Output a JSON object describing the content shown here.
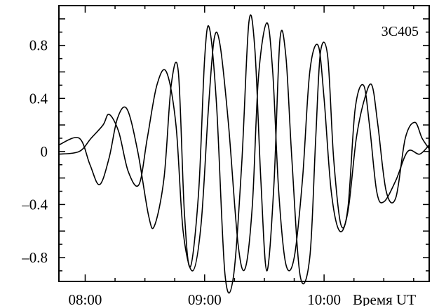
{
  "chart_data": {
    "type": "line",
    "title": "3C405",
    "xlabel": "Время UT",
    "ylabel": "",
    "xlim": [
      7.78,
      10.88
    ],
    "ylim": [
      -0.98,
      1.1
    ],
    "x_ticks": [
      {
        "value": 8.0,
        "label": "08:00"
      },
      {
        "value": 9.0,
        "label": "09:00"
      },
      {
        "value": 10.0,
        "label": "10:00"
      }
    ],
    "y_ticks": [
      {
        "value": 0.8,
        "label": "0.8"
      },
      {
        "value": 0.4,
        "label": "0.4"
      },
      {
        "value": 0,
        "label": "0"
      },
      {
        "value": -0.4,
        "label": "–0.4"
      },
      {
        "value": -0.8,
        "label": "–0.8"
      }
    ],
    "grid": false,
    "series": [
      {
        "x": [
          7.78,
          7.95,
          8.04,
          8.12,
          8.2,
          8.27,
          8.35,
          8.44,
          8.53,
          8.58,
          8.66,
          8.72,
          8.78,
          8.83,
          8.88,
          8.95,
          9.0,
          9.04,
          9.1,
          9.17,
          9.24,
          9.31,
          9.37,
          9.42,
          9.47,
          9.52,
          9.58,
          9.63,
          9.68,
          9.73,
          9.8,
          9.88,
          9.93,
          9.97,
          10.03,
          10.08,
          10.14,
          10.2,
          10.26,
          10.33,
          10.38,
          10.44,
          10.5,
          10.6,
          10.7,
          10.8,
          10.88
        ],
        "values": [
          0.05,
          0.1,
          -0.1,
          -0.25,
          -0.05,
          0.25,
          0.32,
          0.0,
          -0.48,
          -0.56,
          -0.2,
          0.5,
          0.6,
          -0.45,
          -0.87,
          -0.3,
          0.7,
          0.93,
          0.35,
          -0.92,
          -0.95,
          -0.1,
          0.97,
          0.78,
          -0.2,
          -0.9,
          -0.25,
          0.84,
          0.72,
          -0.05,
          -0.94,
          -0.8,
          0.1,
          0.75,
          0.72,
          -0.05,
          -0.55,
          -0.42,
          0.32,
          0.5,
          0.2,
          -0.3,
          -0.38,
          -0.22,
          0.0,
          -0.02,
          0.05
        ],
        "color": "#000000"
      },
      {
        "x": [
          7.78,
          7.95,
          8.05,
          8.15,
          8.2,
          8.28,
          8.36,
          8.45,
          8.52,
          8.6,
          8.68,
          8.76,
          8.82,
          8.9,
          8.97,
          9.03,
          9.08,
          9.13,
          9.2,
          9.28,
          9.34,
          9.4,
          9.45,
          9.52,
          9.57,
          9.62,
          9.68,
          9.75,
          9.82,
          9.88,
          9.95,
          10.0,
          10.06,
          10.13,
          10.2,
          10.27,
          10.34,
          10.4,
          10.45,
          10.52,
          10.6,
          10.68,
          10.76,
          10.82,
          10.88
        ],
        "values": [
          -0.02,
          0.0,
          0.1,
          0.2,
          0.28,
          0.15,
          -0.15,
          -0.25,
          0.1,
          0.5,
          0.6,
          0.2,
          -0.6,
          -0.9,
          -0.55,
          0.3,
          0.85,
          0.8,
          0.2,
          -0.7,
          -0.88,
          -0.4,
          0.55,
          0.97,
          0.6,
          -0.3,
          -0.85,
          -0.8,
          -0.2,
          0.6,
          0.8,
          0.4,
          -0.3,
          -0.6,
          -0.45,
          0.1,
          0.4,
          0.5,
          0.2,
          -0.3,
          -0.35,
          0.1,
          0.22,
          0.1,
          0.02
        ],
        "color": "#000000"
      }
    ]
  }
}
